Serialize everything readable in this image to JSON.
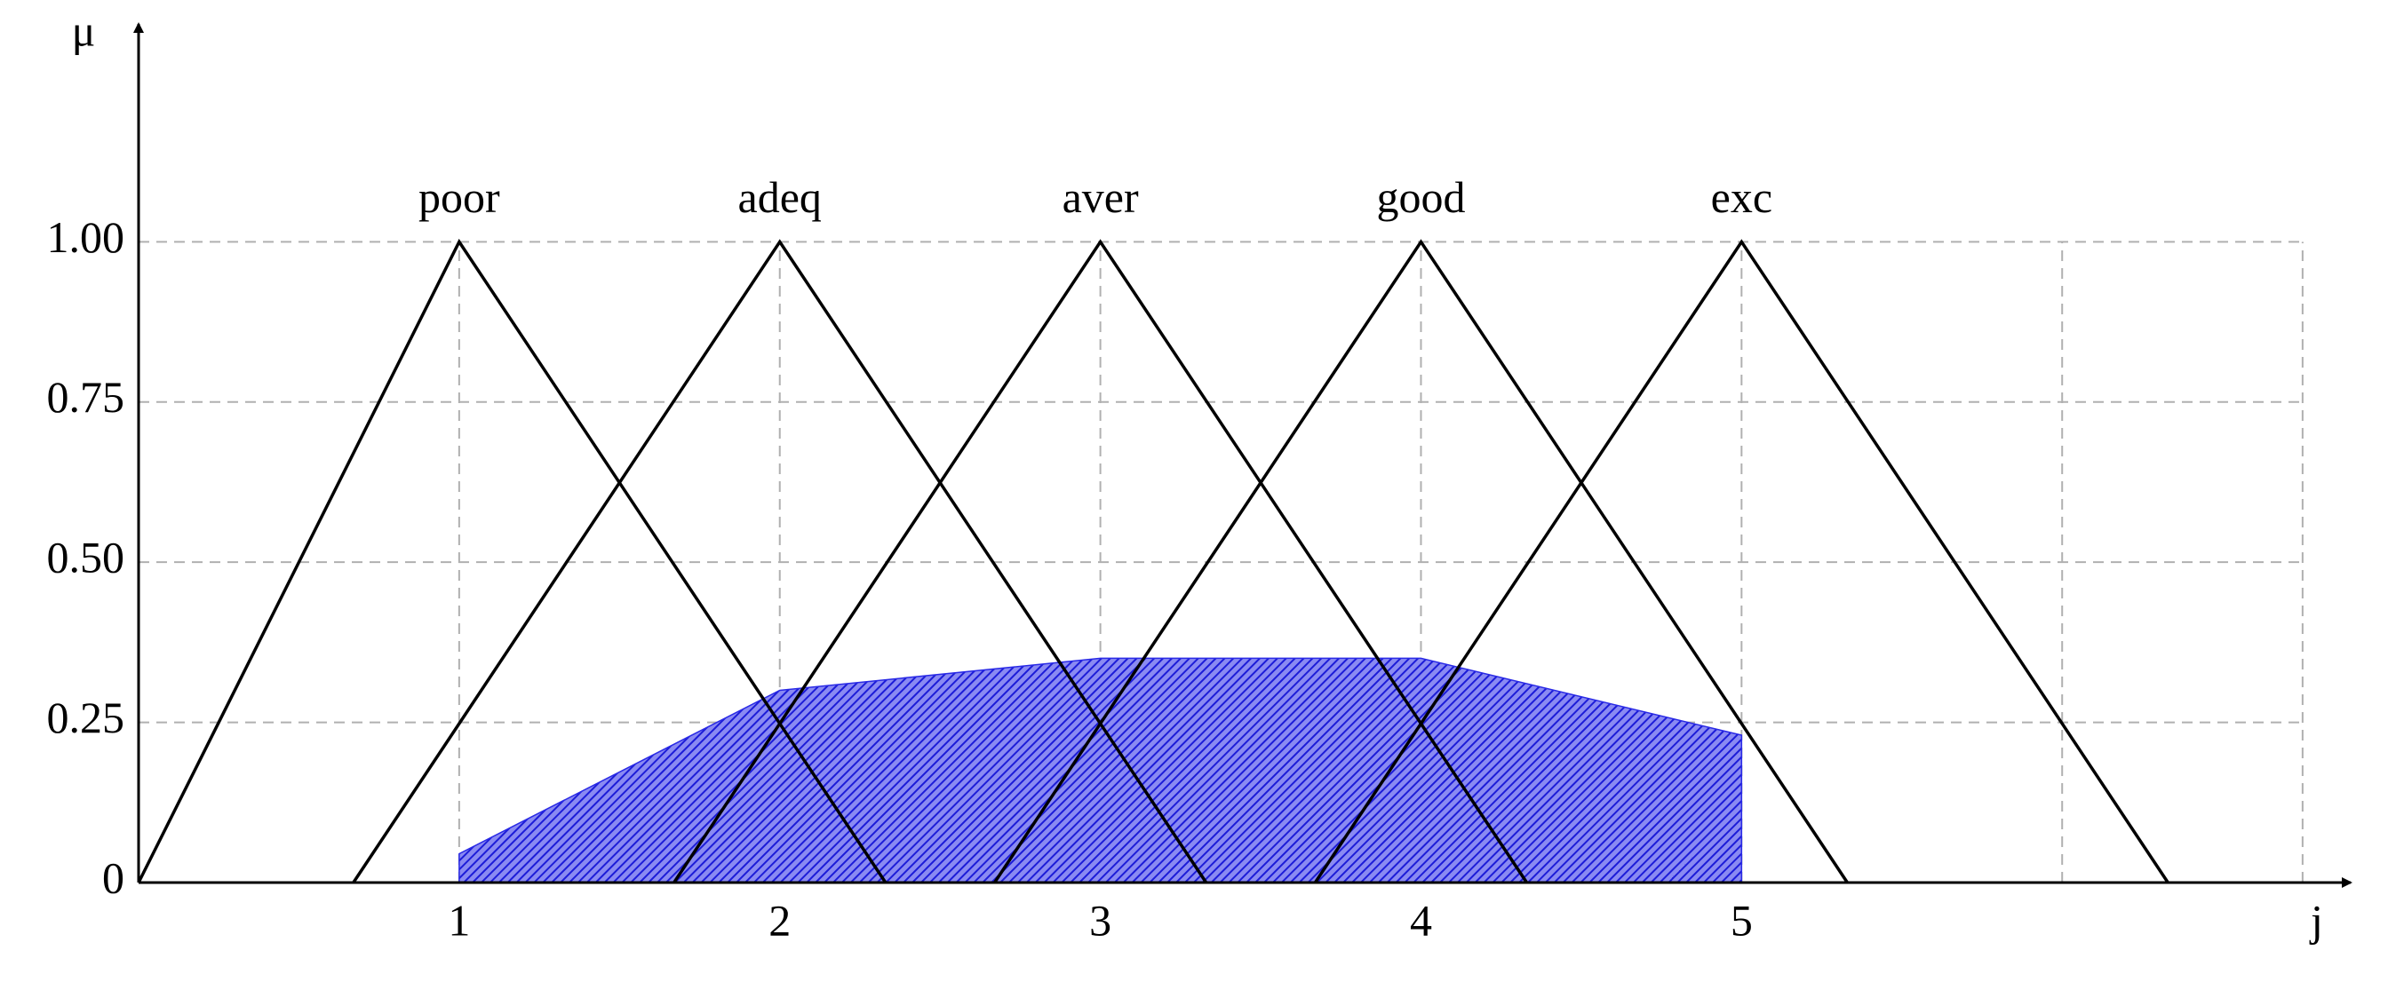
{
  "chart_data": {
    "type": "line",
    "xlabel": "j",
    "ylabel": "μ",
    "xlim": [
      0,
      6.9
    ],
    "ylim": [
      0,
      1.34
    ],
    "xticks": [
      1,
      2,
      3,
      4,
      5
    ],
    "xgrid": [
      6,
      6.75
    ],
    "yticks": [
      0,
      0.25,
      {
        "value": 0.5,
        "label": "0.50"
      },
      0.75,
      {
        "value": 1,
        "label": "1.00"
      }
    ],
    "grid": true,
    "series": [
      {
        "name": "poor",
        "color": "#000000",
        "x": [
          0,
          1,
          2.33
        ],
        "values": [
          0,
          1,
          0
        ]
      },
      {
        "name": "adeq",
        "color": "#000000",
        "x": [
          0.67,
          2,
          3.33
        ],
        "values": [
          0,
          1,
          0
        ]
      },
      {
        "name": "aver",
        "color": "#000000",
        "x": [
          1.67,
          3,
          4.33
        ],
        "values": [
          0,
          1,
          0
        ]
      },
      {
        "name": "good",
        "color": "#000000",
        "x": [
          2.67,
          4,
          5.33
        ],
        "values": [
          0,
          1,
          0
        ]
      },
      {
        "name": "exc",
        "color": "#000000",
        "x": [
          3.67,
          5,
          6.33
        ],
        "values": [
          0,
          1,
          0
        ]
      }
    ],
    "area": {
      "color": "#2a2ae6",
      "x": [
        1,
        2,
        3,
        4,
        5
      ],
      "values": [
        0.045,
        0.3,
        0.35,
        0.35,
        0.23
      ]
    }
  }
}
